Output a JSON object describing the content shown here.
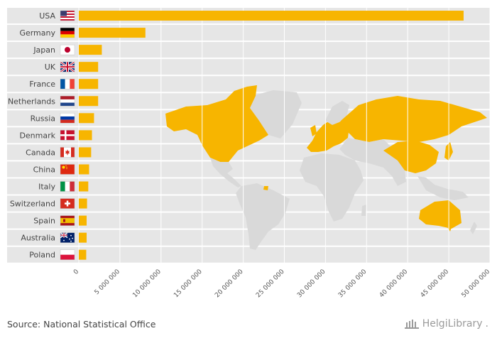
{
  "source": "Source: National Statistical Office",
  "brand": {
    "name": "HelgiLibrary",
    "suffix": "."
  },
  "chart_data": {
    "type": "bar",
    "orientation": "horizontal",
    "title": "",
    "xlabel": "",
    "ylabel": "",
    "categories": [
      "USA",
      "Germany",
      "Japan",
      "UK",
      "France",
      "Netherlands",
      "Russia",
      "Denmark",
      "Canada",
      "China",
      "Italy",
      "Switzerland",
      "Spain",
      "Australia",
      "Poland"
    ],
    "values": [
      46800000,
      8100000,
      2800000,
      2350000,
      2350000,
      2350000,
      1850000,
      1600000,
      1500000,
      1250000,
      1150000,
      1000000,
      950000,
      950000,
      900000
    ],
    "xlim": [
      0,
      50000000
    ],
    "xticks": [
      0,
      5000000,
      10000000,
      15000000,
      20000000,
      25000000,
      30000000,
      35000000,
      40000000,
      45000000,
      50000000
    ],
    "xtick_labels": [
      "0",
      "5 000 000",
      "10 000 000",
      "15 000 000",
      "20 000 000",
      "25 000 000",
      "30 000 000",
      "35 000 000",
      "40 000 000",
      "45 000 000",
      "50 000 000"
    ],
    "flags": [
      "us-flag-icon",
      "germany-flag-icon",
      "japan-flag-icon",
      "uk-flag-icon",
      "france-flag-icon",
      "netherlands-flag-icon",
      "russia-flag-icon",
      "denmark-flag-icon",
      "canada-flag-icon",
      "china-flag-icon",
      "italy-flag-icon",
      "switzerland-flag-icon",
      "spain-flag-icon",
      "australia-flag-icon",
      "poland-flag-icon"
    ],
    "bar_color": "#f7b500",
    "row_background": "#e6e6e6",
    "grid": true,
    "legend": "none",
    "background_map": "world map with listed countries highlighted in #f7b500, others in #d9d9d9"
  }
}
